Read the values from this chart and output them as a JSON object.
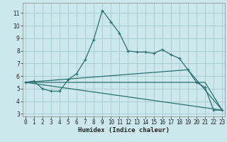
{
  "xlabel": "Humidex (Indice chaleur)",
  "bg_color": "#cce8ec",
  "grid_color": "#aacdd4",
  "line_color": "#2a7070",
  "series": {
    "main": {
      "x": [
        0,
        1,
        2,
        3,
        4,
        5,
        6,
        7,
        8,
        9,
        10,
        11,
        12,
        13,
        14,
        15,
        16,
        17,
        18,
        19,
        20,
        21,
        22,
        23
      ],
      "y": [
        5.5,
        5.6,
        5.0,
        4.8,
        4.8,
        5.7,
        6.2,
        7.3,
        8.9,
        11.2,
        10.3,
        9.4,
        8.0,
        7.9,
        7.9,
        7.8,
        8.1,
        7.7,
        7.4,
        6.5,
        5.5,
        5.1,
        3.3,
        3.3
      ]
    },
    "fan1": {
      "x": [
        0,
        23
      ],
      "y": [
        5.5,
        3.3
      ]
    },
    "fan2": {
      "x": [
        0,
        21,
        23
      ],
      "y": [
        5.5,
        5.5,
        3.3
      ]
    },
    "fan3": {
      "x": [
        0,
        19,
        23
      ],
      "y": [
        5.5,
        6.5,
        3.3
      ]
    }
  },
  "xlim": [
    -0.3,
    23.3
  ],
  "ylim": [
    2.8,
    11.8
  ],
  "yticks": [
    3,
    4,
    5,
    6,
    7,
    8,
    9,
    10,
    11
  ],
  "xticks": [
    0,
    1,
    2,
    3,
    4,
    5,
    6,
    7,
    8,
    9,
    10,
    11,
    12,
    13,
    14,
    15,
    16,
    17,
    18,
    19,
    20,
    21,
    22,
    23
  ],
  "tick_fontsize": 5.5,
  "xlabel_fontsize": 6.5
}
